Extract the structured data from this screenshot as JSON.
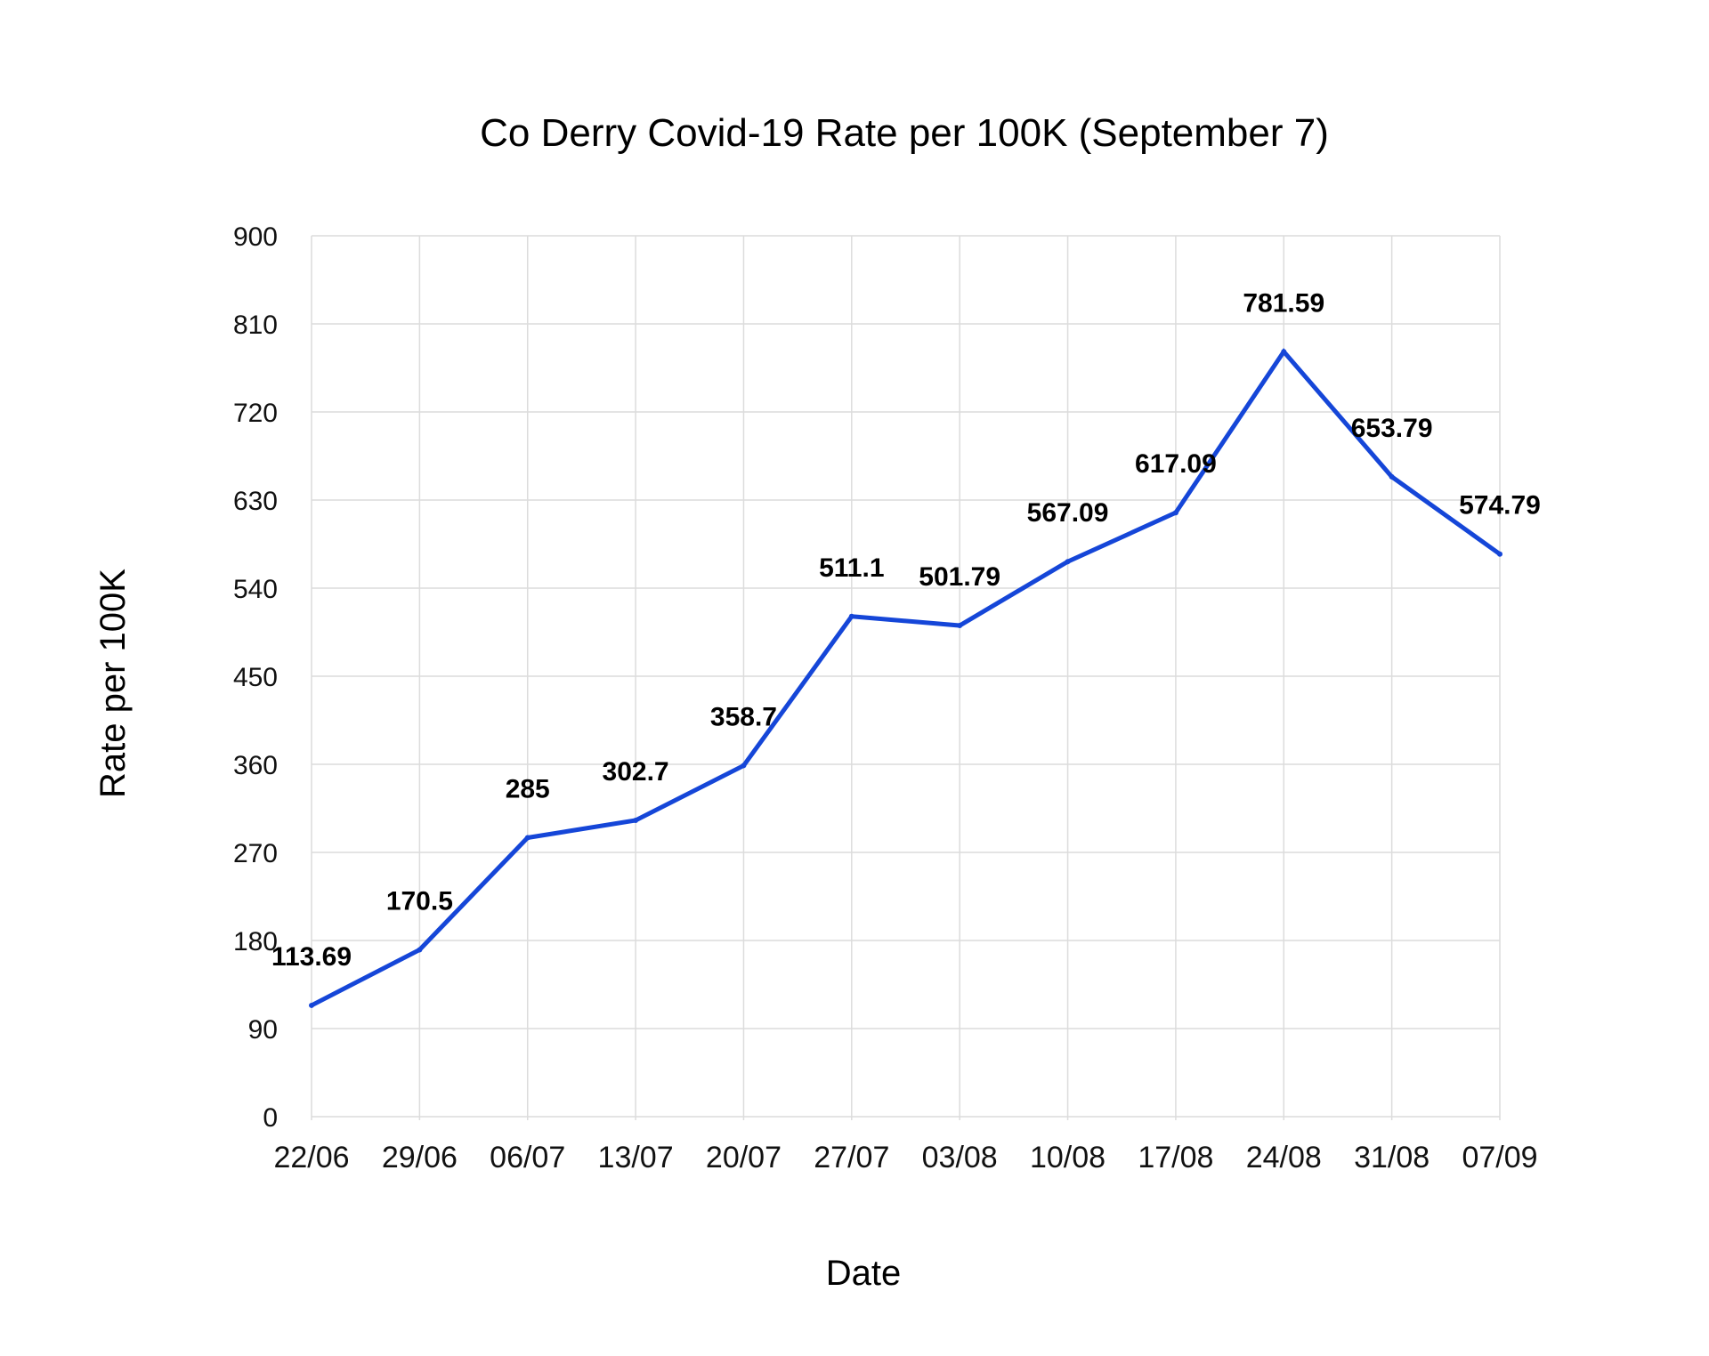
{
  "chart_data": {
    "type": "line",
    "title": "Co Derry Covid-19 Rate per 100K (September 7)",
    "xlabel": "Date",
    "ylabel": "Rate per 100K",
    "categories": [
      "22/06",
      "29/06",
      "06/07",
      "13/07",
      "20/07",
      "27/07",
      "03/08",
      "10/08",
      "17/08",
      "24/08",
      "31/08",
      "07/09"
    ],
    "series": [
      {
        "values": [
          113.69,
          170.5,
          285,
          302.7,
          358.7,
          511.1,
          501.79,
          567.09,
          617.09,
          781.59,
          653.79,
          574.79
        ],
        "color": "#1546d8"
      }
    ],
    "data_labels": [
      "113.69",
      "170.5",
      "285",
      "302.7",
      "358.7",
      "511.1",
      "501.79",
      "567.09",
      "617.09",
      "781.59",
      "653.79",
      "574.79"
    ],
    "ylim": [
      0,
      900
    ],
    "yticks": [
      "0",
      "90",
      "180",
      "270",
      "360",
      "450",
      "540",
      "630",
      "720",
      "810",
      "900"
    ],
    "grid": true,
    "legend": "none"
  }
}
